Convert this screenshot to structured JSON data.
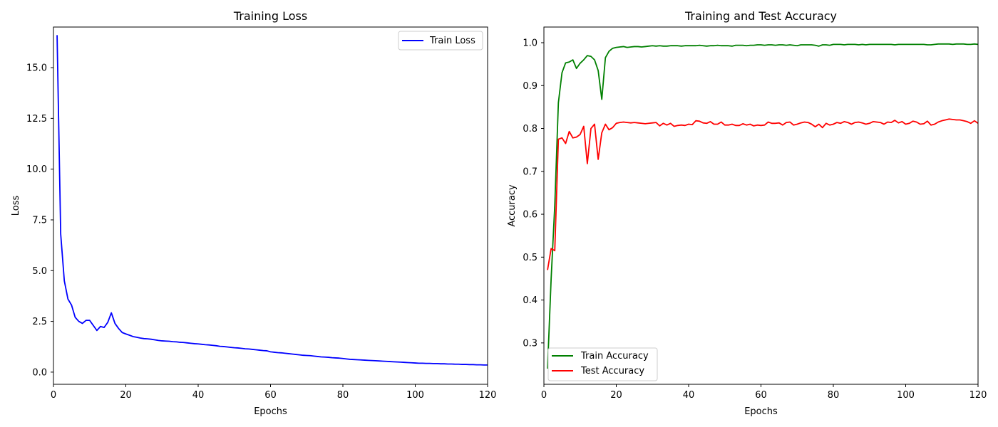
{
  "chart_data": [
    {
      "type": "line",
      "title": "Training Loss",
      "xlabel": "Epochs",
      "ylabel": "Loss",
      "xlim": [
        0,
        120
      ],
      "ylim": [
        -0.6,
        17.0
      ],
      "xticks": [
        0,
        20,
        40,
        60,
        80,
        100,
        120
      ],
      "yticks": [
        0.0,
        2.5,
        5.0,
        7.5,
        10.0,
        12.5,
        15.0
      ],
      "ytick_labels": [
        "0.0",
        "2.5",
        "5.0",
        "7.5",
        "10.0",
        "12.5",
        "15.0"
      ],
      "grid": false,
      "legend": "top-right",
      "x": [
        1,
        2,
        3,
        4,
        5,
        6,
        7,
        8,
        9,
        10,
        11,
        12,
        13,
        14,
        15,
        16,
        17,
        18,
        19,
        20,
        21,
        22,
        23,
        24,
        25,
        26,
        27,
        28,
        29,
        30,
        31,
        32,
        33,
        34,
        35,
        36,
        37,
        38,
        39,
        40,
        41,
        42,
        43,
        44,
        45,
        46,
        47,
        48,
        49,
        50,
        51,
        52,
        53,
        54,
        55,
        56,
        57,
        58,
        59,
        60,
        61,
        62,
        63,
        64,
        65,
        66,
        67,
        68,
        69,
        70,
        71,
        72,
        73,
        74,
        75,
        76,
        77,
        78,
        79,
        80,
        81,
        82,
        83,
        84,
        85,
        86,
        87,
        88,
        89,
        90,
        91,
        92,
        93,
        94,
        95,
        96,
        97,
        98,
        99,
        100,
        101,
        102,
        103,
        104,
        105,
        106,
        107,
        108,
        109,
        110,
        111,
        112,
        113,
        114,
        115,
        116,
        117,
        118,
        119,
        120
      ],
      "series": [
        {
          "name": "Train Loss",
          "color": "#0000ff",
          "values": [
            16.6,
            6.8,
            4.5,
            3.6,
            3.3,
            2.7,
            2.5,
            2.4,
            2.55,
            2.55,
            2.3,
            2.05,
            2.25,
            2.2,
            2.45,
            2.92,
            2.4,
            2.15,
            1.95,
            1.88,
            1.82,
            1.75,
            1.72,
            1.68,
            1.65,
            1.64,
            1.62,
            1.59,
            1.56,
            1.54,
            1.53,
            1.52,
            1.5,
            1.49,
            1.47,
            1.46,
            1.44,
            1.42,
            1.4,
            1.39,
            1.37,
            1.35,
            1.34,
            1.32,
            1.3,
            1.27,
            1.26,
            1.24,
            1.22,
            1.2,
            1.19,
            1.17,
            1.15,
            1.14,
            1.12,
            1.1,
            1.08,
            1.06,
            1.05,
            1.0,
            0.98,
            0.96,
            0.95,
            0.93,
            0.91,
            0.89,
            0.87,
            0.85,
            0.83,
            0.82,
            0.81,
            0.79,
            0.77,
            0.75,
            0.74,
            0.73,
            0.71,
            0.7,
            0.69,
            0.67,
            0.65,
            0.63,
            0.62,
            0.61,
            0.6,
            0.59,
            0.58,
            0.57,
            0.56,
            0.55,
            0.54,
            0.53,
            0.52,
            0.51,
            0.5,
            0.49,
            0.48,
            0.47,
            0.46,
            0.45,
            0.44,
            0.44,
            0.43,
            0.43,
            0.42,
            0.42,
            0.41,
            0.41,
            0.4,
            0.4,
            0.39,
            0.39,
            0.38,
            0.38,
            0.37,
            0.37,
            0.36,
            0.36,
            0.35,
            0.35
          ]
        }
      ]
    },
    {
      "type": "line",
      "title": "Training and Test Accuracy",
      "xlabel": "Epochs",
      "ylabel": "Accuracy",
      "xlim": [
        0,
        120
      ],
      "ylim": [
        0.2035,
        1.0365
      ],
      "xticks": [
        0,
        20,
        40,
        60,
        80,
        100,
        120
      ],
      "yticks": [
        0.3,
        0.4,
        0.5,
        0.6,
        0.7,
        0.8,
        0.9,
        1.0
      ],
      "ytick_labels": [
        "0.3",
        "0.4",
        "0.5",
        "0.6",
        "0.7",
        "0.8",
        "0.9",
        "1.0"
      ],
      "grid": false,
      "legend": "bottom-left",
      "x": [
        1,
        2,
        3,
        4,
        5,
        6,
        7,
        8,
        9,
        10,
        11,
        12,
        13,
        14,
        15,
        16,
        17,
        18,
        19,
        20,
        21,
        22,
        23,
        24,
        25,
        26,
        27,
        28,
        29,
        30,
        31,
        32,
        33,
        34,
        35,
        36,
        37,
        38,
        39,
        40,
        41,
        42,
        43,
        44,
        45,
        46,
        47,
        48,
        49,
        50,
        51,
        52,
        53,
        54,
        55,
        56,
        57,
        58,
        59,
        60,
        61,
        62,
        63,
        64,
        65,
        66,
        67,
        68,
        69,
        70,
        71,
        72,
        73,
        74,
        75,
        76,
        77,
        78,
        79,
        80,
        81,
        82,
        83,
        84,
        85,
        86,
        87,
        88,
        89,
        90,
        91,
        92,
        93,
        94,
        95,
        96,
        97,
        98,
        99,
        100,
        101,
        102,
        103,
        104,
        105,
        106,
        107,
        108,
        109,
        110,
        111,
        112,
        113,
        114,
        115,
        116,
        117,
        118,
        119,
        120
      ],
      "series": [
        {
          "name": "Train Accuracy",
          "color": "#008000",
          "values": [
            0.24,
            0.45,
            0.62,
            0.86,
            0.93,
            0.953,
            0.955,
            0.96,
            0.94,
            0.952,
            0.96,
            0.97,
            0.968,
            0.96,
            0.935,
            0.868,
            0.965,
            0.98,
            0.987,
            0.989,
            0.99,
            0.991,
            0.989,
            0.99,
            0.991,
            0.991,
            0.99,
            0.991,
            0.992,
            0.993,
            0.992,
            0.993,
            0.992,
            0.992,
            0.993,
            0.993,
            0.993,
            0.992,
            0.993,
            0.993,
            0.993,
            0.993,
            0.994,
            0.993,
            0.992,
            0.993,
            0.993,
            0.994,
            0.993,
            0.993,
            0.993,
            0.992,
            0.994,
            0.994,
            0.994,
            0.993,
            0.994,
            0.994,
            0.995,
            0.995,
            0.994,
            0.995,
            0.995,
            0.994,
            0.995,
            0.995,
            0.994,
            0.995,
            0.994,
            0.993,
            0.995,
            0.995,
            0.995,
            0.995,
            0.994,
            0.992,
            0.995,
            0.995,
            0.994,
            0.996,
            0.996,
            0.996,
            0.995,
            0.996,
            0.996,
            0.996,
            0.995,
            0.996,
            0.995,
            0.996,
            0.996,
            0.996,
            0.996,
            0.996,
            0.996,
            0.996,
            0.995,
            0.996,
            0.996,
            0.996,
            0.996,
            0.996,
            0.996,
            0.996,
            0.996,
            0.995,
            0.995,
            0.996,
            0.997,
            0.997,
            0.997,
            0.997,
            0.996,
            0.997,
            0.997,
            0.997,
            0.996,
            0.996,
            0.997,
            0.996
          ]
        },
        {
          "name": "Test Accuracy",
          "color": "#ff0000",
          "values": [
            0.47,
            0.52,
            0.515,
            0.775,
            0.778,
            0.765,
            0.793,
            0.778,
            0.78,
            0.786,
            0.805,
            0.718,
            0.8,
            0.81,
            0.728,
            0.79,
            0.81,
            0.797,
            0.802,
            0.812,
            0.814,
            0.815,
            0.814,
            0.813,
            0.814,
            0.813,
            0.812,
            0.811,
            0.812,
            0.813,
            0.814,
            0.806,
            0.812,
            0.808,
            0.812,
            0.805,
            0.807,
            0.808,
            0.807,
            0.81,
            0.809,
            0.818,
            0.817,
            0.813,
            0.812,
            0.816,
            0.81,
            0.81,
            0.815,
            0.808,
            0.808,
            0.81,
            0.807,
            0.807,
            0.811,
            0.808,
            0.81,
            0.806,
            0.808,
            0.807,
            0.808,
            0.815,
            0.812,
            0.812,
            0.813,
            0.808,
            0.814,
            0.815,
            0.808,
            0.81,
            0.813,
            0.815,
            0.814,
            0.81,
            0.804,
            0.81,
            0.802,
            0.812,
            0.808,
            0.81,
            0.814,
            0.812,
            0.816,
            0.814,
            0.81,
            0.814,
            0.815,
            0.813,
            0.81,
            0.812,
            0.816,
            0.815,
            0.814,
            0.81,
            0.815,
            0.814,
            0.819,
            0.813,
            0.816,
            0.81,
            0.812,
            0.817,
            0.815,
            0.81,
            0.811,
            0.817,
            0.808,
            0.81,
            0.815,
            0.818,
            0.82,
            0.822,
            0.821,
            0.82,
            0.82,
            0.818,
            0.816,
            0.812,
            0.818,
            0.812
          ]
        }
      ]
    }
  ]
}
